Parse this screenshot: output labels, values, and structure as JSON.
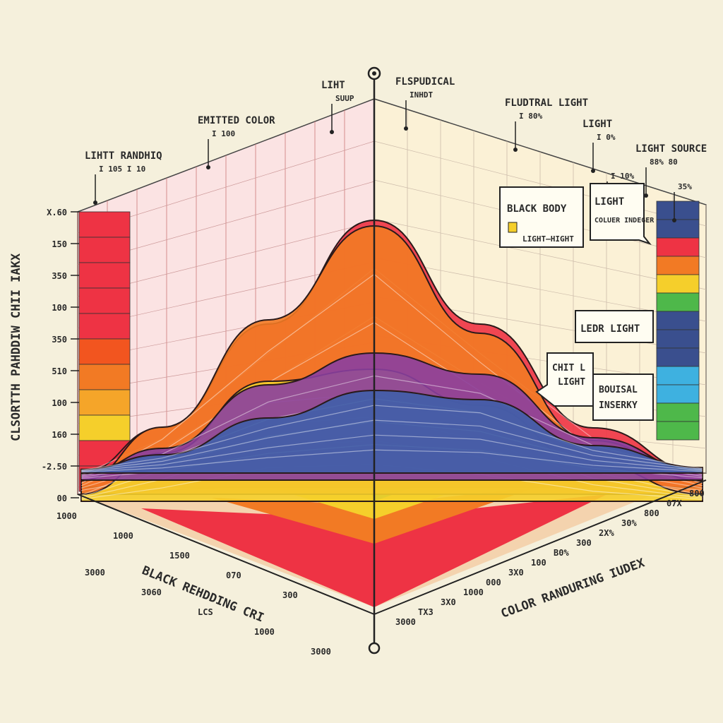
{
  "chart_data": {
    "type": "area",
    "projection": "3d-corner",
    "y_axis_label": "CLSORTTH PAHDDIW CHII IAKX",
    "y_ticks": [
      "X.60",
      "150",
      "350",
      "100",
      "350",
      "510",
      "100",
      "160",
      "-2.50",
      "00"
    ],
    "left_axis_label": "BLACK REHDDING CRI",
    "left_ticks": [
      "1000",
      "1000",
      "1500",
      "070",
      "300",
      "3000",
      "3060",
      "LCS",
      "1000",
      "3000"
    ],
    "right_axis_label": "COLOR RANDURING IUDEX",
    "right_ticks": [
      "3000",
      "TX3",
      "3X0",
      "1000",
      "000",
      "3X0",
      "100",
      "B0%",
      "300",
      "2X%",
      "30%",
      "800",
      "07X",
      "800"
    ],
    "top_callouts": [
      {
        "text": "LIHTT RANDHIQ",
        "sub": "I 105   I 10"
      },
      {
        "text": "EMITTED COLOR",
        "sub": "I 100"
      },
      {
        "text": "LIHT",
        "sub": "SUUP"
      },
      {
        "text": "FLSPUDICAL",
        "sub": "INHDT"
      },
      {
        "text": "FLUDTRAL LIGHT",
        "sub": "I 80%"
      },
      {
        "text": "LIGHT",
        "sub": "I 0%"
      },
      {
        "text": "",
        "sub": "I 10%"
      },
      {
        "text": "LIGHT SOURCE",
        "sub": "88% 80"
      },
      {
        "text": "",
        "sub": "35%"
      }
    ],
    "boxes": [
      {
        "title": "BLACK BODY",
        "item": "LIGHT—HIGHT"
      },
      {
        "title": "LIGHT",
        "sub": "COLUER INDEGER"
      },
      {
        "title": "LEDR LIGHT"
      },
      {
        "title": "CHIT L",
        "sub": "LIGHT"
      },
      {
        "title": "BOUISAL",
        "sub": "INSERKY"
      }
    ],
    "series": [
      {
        "color": "#ee3344",
        "values": [
          0.05,
          0.2,
          0.55,
          0.9,
          0.55,
          0.2,
          0.05
        ]
      },
      {
        "color": "#f27a24",
        "values": [
          0.05,
          0.25,
          0.65,
          1.0,
          0.6,
          0.2,
          0.05
        ]
      },
      {
        "color": "#f5cf2b",
        "values": [
          0.03,
          0.2,
          0.5,
          0.55,
          0.4,
          0.15,
          0.03
        ]
      },
      {
        "color": "#8a3fa0",
        "values": [
          0.03,
          0.15,
          0.45,
          0.6,
          0.5,
          0.2,
          0.04
        ]
      },
      {
        "color": "#3f5fa8",
        "values": [
          0.02,
          0.1,
          0.3,
          0.45,
          0.4,
          0.15,
          0.03
        ]
      }
    ],
    "palette": [
      "#ee3344",
      "#f27a24",
      "#f5cf2b",
      "#4eb84a",
      "#3eb1e0",
      "#8a3fa0",
      "#3a4f8e"
    ]
  }
}
